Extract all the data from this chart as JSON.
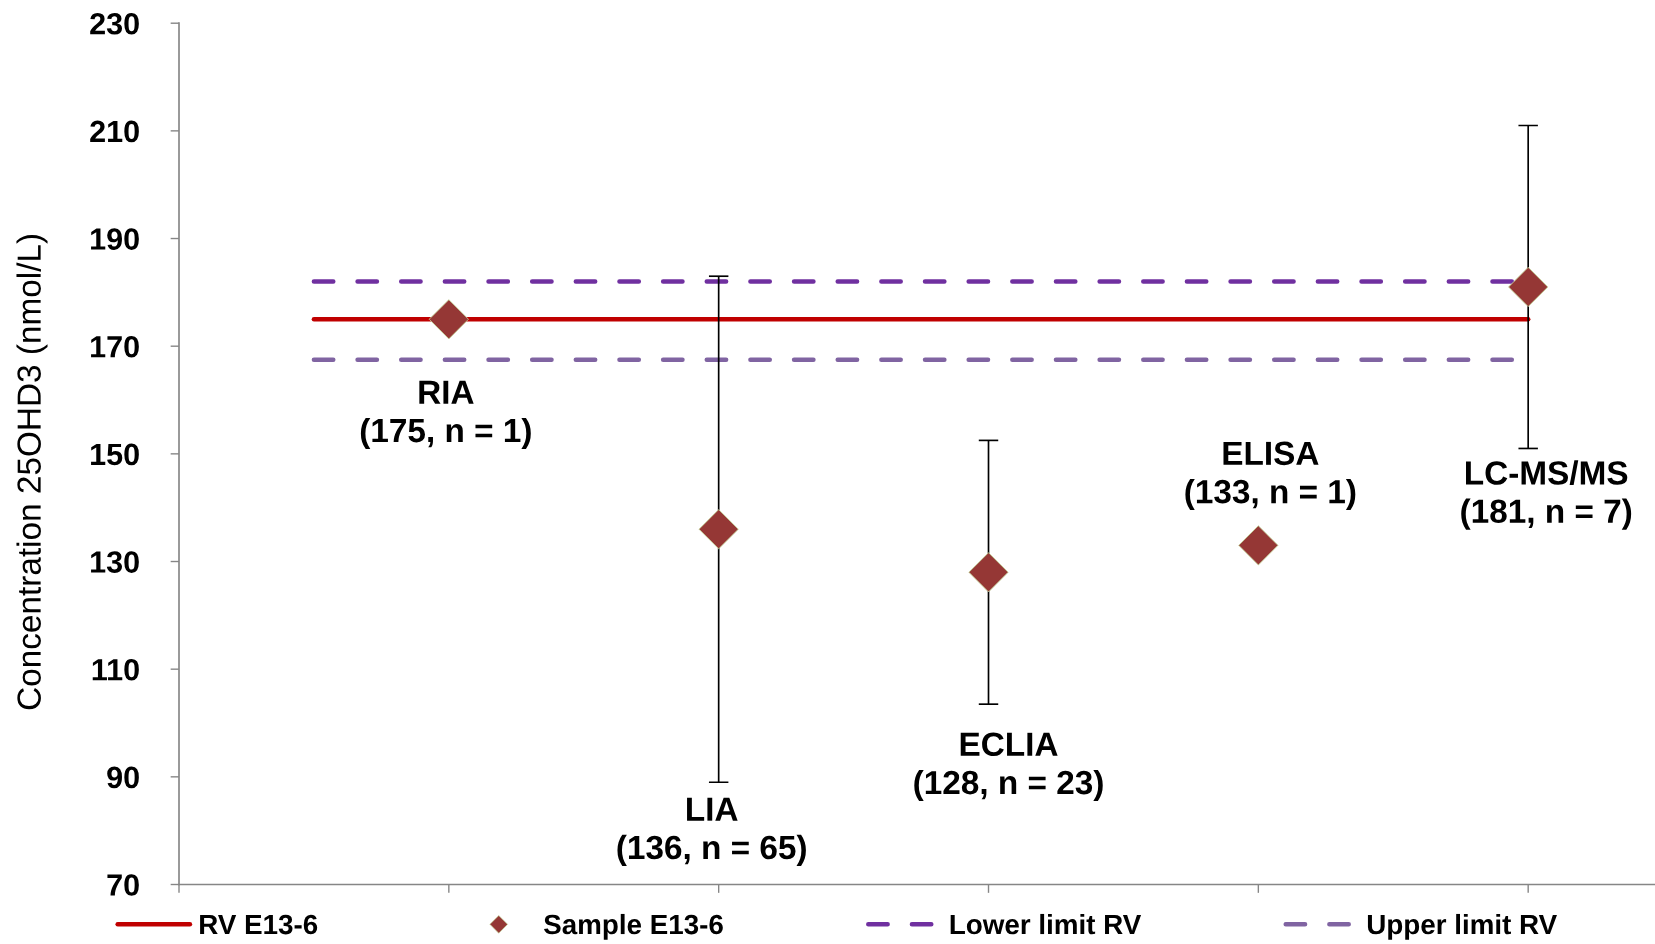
{
  "chart_data": {
    "type": "scatter",
    "ylabel": "Concentration 25OHD3 (nmol/L)",
    "categories": [
      null,
      null,
      null,
      null,
      null
    ],
    "ylim": [
      70,
      230
    ],
    "yticks": [
      70,
      90,
      110,
      130,
      150,
      170,
      190,
      210,
      230
    ],
    "legend": "bottom",
    "marker": "diamond",
    "series": [
      {
        "name": "Sample E13-6",
        "color": "#953735",
        "values": [
          175,
          136,
          128,
          133,
          181
        ],
        "errors": [
          null,
          47,
          24.5,
          null,
          30
        ]
      }
    ],
    "ref_lines": [
      {
        "axis": "y",
        "value": 175,
        "label": "RV E13-6",
        "color": "#c00000",
        "line_style": "solid"
      },
      {
        "axis": "y",
        "value": 182,
        "label": "Lower limit RV",
        "color": "#7030a0",
        "line_style": "dashed"
      },
      {
        "axis": "y",
        "value": 167.5,
        "label": "Upper limit RV",
        "color": "#8064a2",
        "line_style": "dashed"
      }
    ],
    "annotations": [
      "RIA\n(175, n = 1)",
      "LIA\n(136, n = 65)",
      "ECLIA\n(128, n = 23)",
      "ELISA\n(133, n = 1)",
      "LC-MS/MS\n(181, n = 7)"
    ]
  }
}
